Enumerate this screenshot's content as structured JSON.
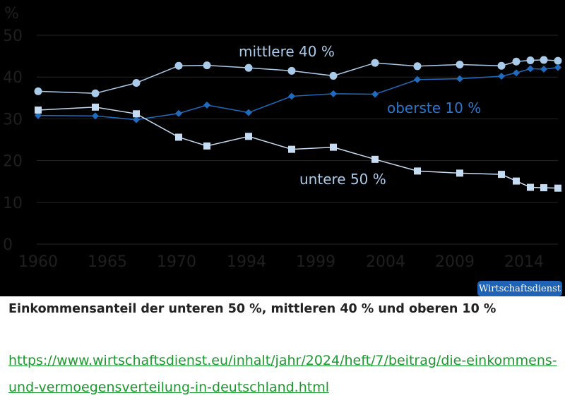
{
  "chart_data": {
    "type": "line",
    "unit_label": "%",
    "x": [
      "1960",
      "1965",
      "1968",
      "1970",
      "1975",
      "1994",
      "1997",
      "2000",
      "2003",
      "2006",
      "2009",
      "2012",
      "2013",
      "2014",
      "2015",
      "2016"
    ],
    "xtick_labels": [
      "1960",
      "1965",
      "1970",
      "1994",
      "1999",
      "2004",
      "2009",
      "2014"
    ],
    "ylim": [
      0,
      50
    ],
    "yticks": [
      0,
      10,
      20,
      30,
      40,
      50
    ],
    "grid": true,
    "series": [
      {
        "name": "mittlere 40 %",
        "color": "#a9cbe9",
        "marker": "circle",
        "values": [
          36.6,
          36.1,
          38.6,
          42.7,
          42.8,
          42.2,
          41.5,
          40.3,
          43.4,
          42.6,
          43.0,
          42.7,
          43.7,
          44.0,
          44.1,
          43.9
        ]
      },
      {
        "name": "oberste 10 %",
        "color": "#1f6cbf",
        "marker": "diamond",
        "values": [
          30.8,
          30.7,
          29.8,
          31.3,
          33.3,
          31.5,
          35.4,
          36.0,
          35.9,
          39.4,
          39.6,
          40.2,
          41.0,
          42.0,
          41.9,
          42.3
        ]
      },
      {
        "name": "untere 50 %",
        "color": "#c6dcf2",
        "marker": "square",
        "values": [
          32.1,
          32.8,
          31.2,
          25.6,
          23.5,
          25.8,
          22.7,
          23.2,
          20.3,
          17.5,
          17.0,
          16.7,
          15.1,
          13.6,
          13.5,
          13.4
        ]
      }
    ]
  },
  "badge": "Wirtschaftsdienst",
  "caption": "Einkommensanteil der unteren 50 %, mittleren 40 % und oberen 10 %",
  "source_link": "https://www.wirtschaftsdienst.eu/inhalt/jahr/2024/heft/7/beitrag/die-einkommens-und-vermoegensverteilung-in-deutschland.html"
}
